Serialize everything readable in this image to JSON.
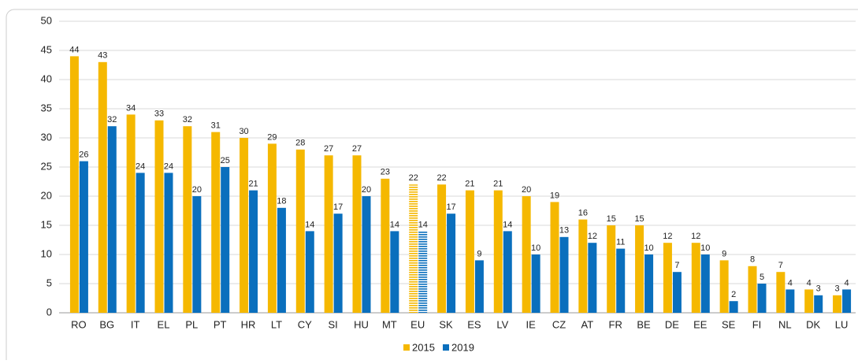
{
  "chart_data": {
    "type": "bar",
    "categories": [
      "RO",
      "BG",
      "IT",
      "EL",
      "PL",
      "PT",
      "HR",
      "LT",
      "CY",
      "SI",
      "HU",
      "MT",
      "EU",
      "SK",
      "ES",
      "LV",
      "IE",
      "CZ",
      "AT",
      "FR",
      "BE",
      "DE",
      "EE",
      "SE",
      "FI",
      "NL",
      "DK",
      "LU"
    ],
    "series": [
      {
        "name": "2015",
        "color": "#f5b800",
        "values": [
          44,
          43,
          34,
          33,
          32,
          31,
          30,
          29,
          28,
          27,
          27,
          23,
          22,
          22,
          21,
          21,
          20,
          19,
          16,
          15,
          15,
          12,
          12,
          9,
          8,
          7,
          4,
          3
        ]
      },
      {
        "name": "2019",
        "color": "#0a6fbd",
        "values": [
          26,
          32,
          24,
          24,
          20,
          25,
          21,
          18,
          14,
          17,
          20,
          14,
          14,
          17,
          9,
          14,
          10,
          13,
          12,
          11,
          10,
          7,
          10,
          2,
          5,
          4,
          3,
          4
        ]
      }
    ],
    "ylim": [
      0,
      50
    ],
    "yticks": [
      0,
      5,
      10,
      15,
      20,
      25,
      30,
      35,
      40,
      45,
      50
    ],
    "grid": true,
    "striped_category": "EU",
    "legend": "bottom"
  }
}
